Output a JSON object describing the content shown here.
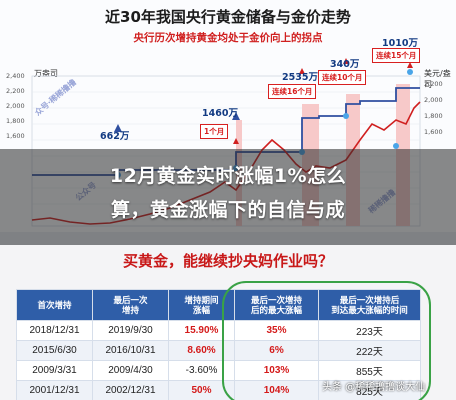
{
  "chart": {
    "title": "近30年我国央行黄金储备与金价走势",
    "subtitle": "央行历次增持黄金均处于金价向上的拐点",
    "unit_left": "万盎司",
    "unit_right": "美元/盎司",
    "y_left_ticks": [
      "2,400",
      "2,200",
      "2,000",
      "1,800",
      "1,600",
      "1,400",
      "1,200",
      "1,000",
      "800",
      "600"
    ],
    "y_right_ticks": [
      "2,200",
      "2,000",
      "1,800",
      "1,600",
      "1,400",
      "1,200",
      "1,000",
      "800",
      "600"
    ],
    "x_ticks": [
      "95-01",
      "97-",
      "",
      "",
      "",
      "",
      "",
      "",
      "",
      "",
      "21-",
      "-04"
    ],
    "values": {
      "v662": "662万",
      "v1460": "1460万",
      "v2535": "2535万",
      "v340": "340万",
      "v1010": "1010万"
    },
    "callouts": {
      "c1": "1个月",
      "c16": "连续16个月",
      "c10": "连续10个月",
      "c15": "连续15个月"
    },
    "footer_right": "Wind",
    "colors": {
      "reserve_line": "#2f4fa0",
      "gold_line": "#d02020",
      "shade": "#f7c9c9"
    }
  },
  "headline": {
    "line1": "12月黄金实时涨幅1%怎么",
    "line2": "算，黄金涨幅下的自信与成"
  },
  "table": {
    "question": "买黄金，能继续抄央妈作业吗？",
    "headers": [
      "首次增持",
      "最后一次\n增持",
      "增持期间\n涨幅",
      "最后一次增持\n后的最大涨幅",
      "最后一次增持后\n到达最大涨幅的时间"
    ],
    "rows": [
      [
        "2018/12/31",
        "2019/9/30",
        "15.90%",
        "35%",
        "223天"
      ],
      [
        "2015/6/30",
        "2016/10/31",
        "8.60%",
        "6%",
        "222天"
      ],
      [
        "2009/3/31",
        "2009/4/30",
        "-3.60%",
        "103%",
        "855天"
      ],
      [
        "2001/12/31",
        "2002/12/31",
        "50%",
        "104%",
        "825天"
      ]
    ]
  },
  "source": "头条 @稀稀撸撸谈大仙"
}
